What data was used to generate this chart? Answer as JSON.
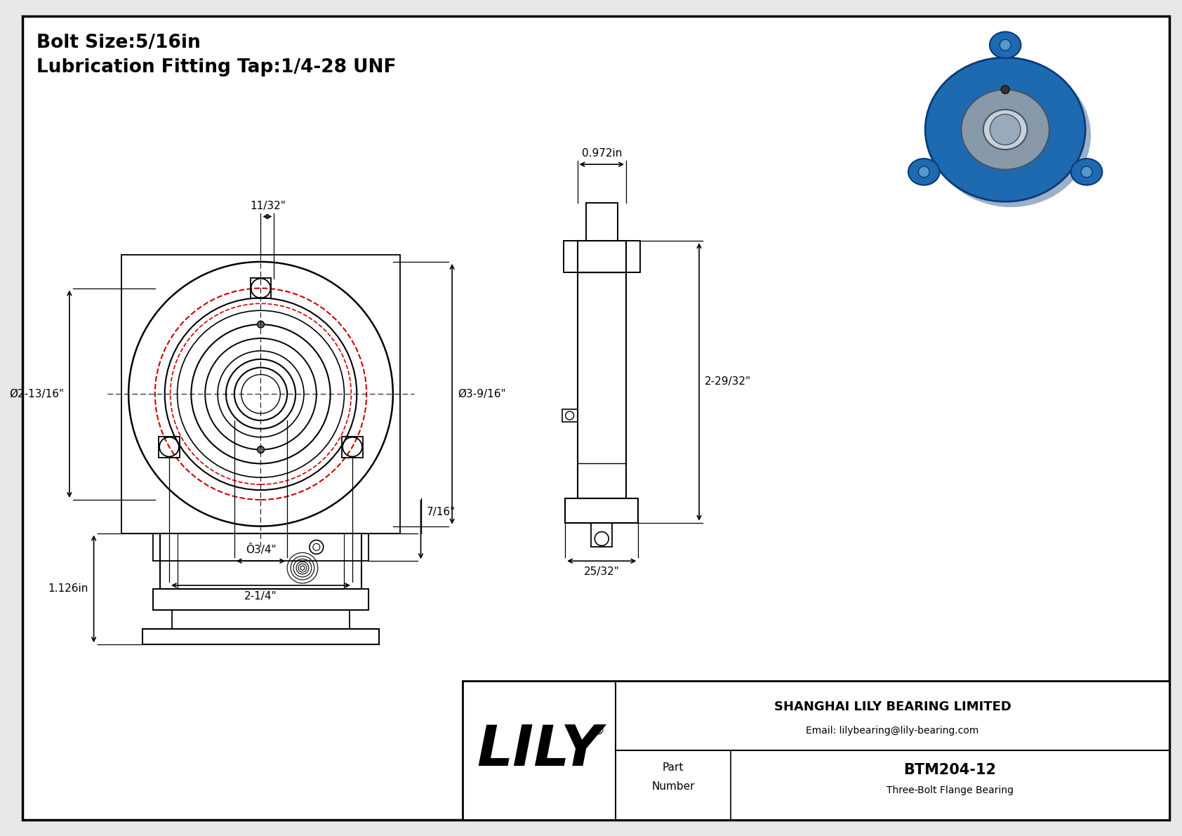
{
  "bg_color": "#e8e8e8",
  "border_color": "#000000",
  "line_color": "#000000",
  "red_color": "#cc0000",
  "title_line1": "Bolt Size:5/16in",
  "title_line2": "Lubrication Fitting Tap:1/4-28 UNF",
  "part_number": "BTM204-12",
  "part_type": "Three-Bolt Flange Bearing",
  "company": "SHANGHAI LILY BEARING LIMITED",
  "email": "Email: lilybearing@lily-bearing.com",
  "dim_bolt_offset": "11/32\"",
  "dim_pcd": "Ø2-13/16\"",
  "dim_od": "Ø3-9/16\"",
  "dim_bore": "Ô3/4\"",
  "dim_bc": "2-1/4\"",
  "dim_width": "0.972in",
  "dim_height": "2-29/32\"",
  "dim_base": "25/32\"",
  "dim_side_height": "7/16\"",
  "dim_side_width": "1.126in"
}
